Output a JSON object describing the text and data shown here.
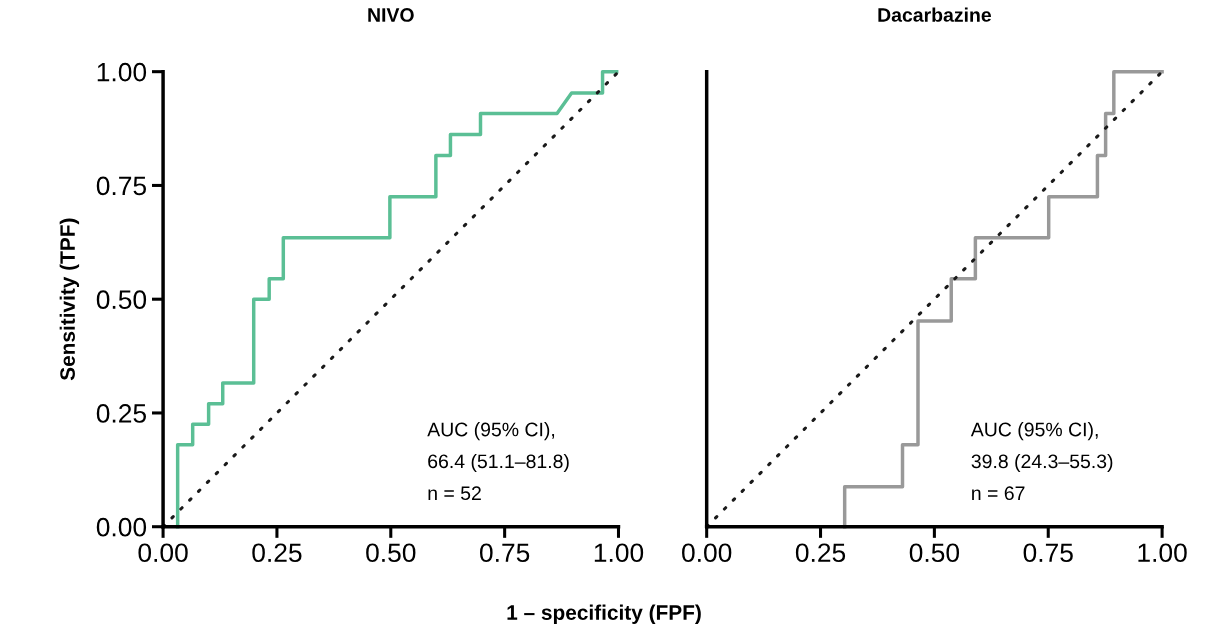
{
  "chart_data": [
    {
      "type": "line",
      "title": "NIVO",
      "ylabel": "Sensitivity (TPF)",
      "xlabel": "1 – specificity (FPF)",
      "series": [
        {
          "color": "#5bbf95",
          "line_style": "solid",
          "x": [
            0.032,
            0.032,
            0.065,
            0.065,
            0.1,
            0.1,
            0.131,
            0.131,
            0.199,
            0.199,
            0.233,
            0.233,
            0.264,
            0.264,
            0.498,
            0.498,
            0.599,
            0.599,
            0.631,
            0.631,
            0.697,
            0.697,
            0.865,
            0.897,
            0.965,
            0.965,
            0.996
          ],
          "values": [
            0,
            0.18,
            0.18,
            0.225,
            0.225,
            0.27,
            0.27,
            0.316,
            0.316,
            0.5,
            0.5,
            0.545,
            0.545,
            0.635,
            0.635,
            0.725,
            0.725,
            0.816,
            0.816,
            0.862,
            0.862,
            0.908,
            0.908,
            0.953,
            0.953,
            1.0,
            1.0
          ]
        },
        {
          "color": "#1a1a1a",
          "line_style": "dotted",
          "x": [
            0,
            1
          ],
          "values": [
            0,
            1
          ]
        }
      ],
      "xlim": [
        0,
        1
      ],
      "ylim": [
        0,
        1
      ],
      "xticks": [
        {
          "value": 0,
          "label": "0.00"
        },
        {
          "value": 0.25,
          "label": "0.25"
        },
        {
          "value": 0.5,
          "label": "0.50"
        },
        {
          "value": 0.75,
          "label": "0.75"
        },
        {
          "value": 1,
          "label": "1.00"
        }
      ],
      "yticks": [
        {
          "value": 0,
          "label": "0.00"
        },
        {
          "value": 0.25,
          "label": "0.25"
        },
        {
          "value": 0.5,
          "label": "0.50"
        },
        {
          "value": 0.75,
          "label": "0.75"
        },
        {
          "value": 1,
          "label": "1.00"
        }
      ],
      "annotations": [
        "AUC (95% CI),",
        "66.4 (51.1–81.8)",
        "n = 52"
      ],
      "grid": false,
      "legend": false
    },
    {
      "type": "line",
      "title": "Dacarbazine",
      "series": [
        {
          "color": "#999999",
          "line_style": "solid",
          "x": [
            0.303,
            0.303,
            0.43,
            0.43,
            0.464,
            0.464,
            0.537,
            0.537,
            0.59,
            0.59,
            0.751,
            0.751,
            0.858,
            0.858,
            0.876,
            0.876,
            0.894,
            0.894,
            1.0
          ],
          "values": [
            0,
            0.088,
            0.088,
            0.18,
            0.18,
            0.452,
            0.452,
            0.545,
            0.545,
            0.635,
            0.635,
            0.725,
            0.725,
            0.816,
            0.816,
            0.908,
            0.908,
            1.0,
            1.0
          ]
        },
        {
          "color": "#1a1a1a",
          "line_style": "dotted",
          "x": [
            0,
            1
          ],
          "values": [
            0,
            1
          ]
        }
      ],
      "xlim": [
        0,
        1
      ],
      "ylim": [
        0,
        1
      ],
      "xticks": [
        {
          "value": 0,
          "label": "0.00"
        },
        {
          "value": 0.25,
          "label": "0.25"
        },
        {
          "value": 0.5,
          "label": "0.50"
        },
        {
          "value": 0.75,
          "label": "0.75"
        },
        {
          "value": 1,
          "label": "1.00"
        }
      ],
      "tick_labels": "x",
      "annotations": [
        "AUC (95% CI),",
        "39.8 (24.3–55.3)",
        "n = 67"
      ],
      "grid": false,
      "legend": false
    }
  ]
}
